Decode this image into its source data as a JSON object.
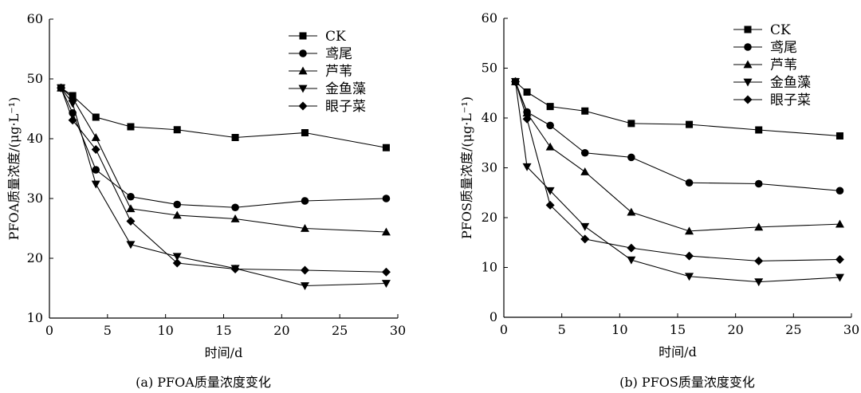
{
  "chart_data": [
    {
      "type": "line",
      "title": "(a) PFOA质量浓度变化",
      "xlabel": "时间/d",
      "ylabel": "PFOA质量浓度/(μg·L⁻¹)",
      "xlim": [
        0,
        30
      ],
      "ylim": [
        10,
        60
      ],
      "xticks": [
        0,
        5,
        10,
        15,
        20,
        25,
        30
      ],
      "yticks": [
        10,
        20,
        30,
        40,
        50,
        60
      ],
      "x": [
        1,
        2,
        4,
        7,
        11,
        16,
        22,
        29
      ],
      "grid": false,
      "legend": "top-right",
      "series": [
        {
          "name": "CK",
          "marker": "square",
          "values": [
            48.5,
            47.2,
            43.6,
            42.0,
            41.5,
            40.2,
            41.0,
            38.5
          ]
        },
        {
          "name": "鸢尾",
          "marker": "circle",
          "values": [
            48.5,
            44.3,
            34.8,
            30.3,
            29.0,
            28.5,
            29.6,
            30.0
          ]
        },
        {
          "name": "芦苇",
          "marker": "triangle-up",
          "values": [
            48.5,
            46.8,
            40.2,
            28.3,
            27.2,
            26.6,
            25.0,
            24.4
          ]
        },
        {
          "name": "金鱼藻",
          "marker": "triangle-down",
          "values": [
            48.5,
            45.9,
            32.4,
            22.3,
            20.3,
            18.3,
            15.4,
            15.8
          ]
        },
        {
          "name": "眼子菜",
          "marker": "diamond",
          "values": [
            48.5,
            43.1,
            38.2,
            26.2,
            19.2,
            18.2,
            18.0,
            17.7
          ]
        }
      ]
    },
    {
      "type": "line",
      "title": "(b) PFOS质量浓度变化",
      "xlabel": "时间/d",
      "ylabel": "PFOS质量浓度/(μg·L⁻¹)",
      "xlim": [
        0,
        30
      ],
      "ylim": [
        0,
        60
      ],
      "xticks": [
        0,
        5,
        10,
        15,
        20,
        25,
        30
      ],
      "yticks": [
        0,
        10,
        20,
        30,
        40,
        50,
        60
      ],
      "x": [
        1,
        2,
        4,
        7,
        11,
        16,
        22,
        29
      ],
      "grid": false,
      "legend": "top-right",
      "series": [
        {
          "name": "CK",
          "marker": "square",
          "values": [
            47.3,
            45.2,
            42.3,
            41.4,
            38.9,
            38.7,
            37.6,
            36.4
          ]
        },
        {
          "name": "鸢尾",
          "marker": "circle",
          "values": [
            47.3,
            41.2,
            38.5,
            33.0,
            32.1,
            27.0,
            26.8,
            25.4
          ]
        },
        {
          "name": "芦苇",
          "marker": "triangle-up",
          "values": [
            47.3,
            41.0,
            34.2,
            29.2,
            21.1,
            17.3,
            18.1,
            18.7
          ]
        },
        {
          "name": "金鱼藻",
          "marker": "triangle-down",
          "values": [
            47.3,
            30.2,
            25.4,
            18.2,
            11.5,
            8.2,
            7.1,
            8.0
          ]
        },
        {
          "name": "眼子菜",
          "marker": "diamond",
          "values": [
            47.3,
            39.8,
            22.5,
            15.7,
            13.9,
            12.3,
            11.3,
            11.6
          ]
        }
      ]
    }
  ]
}
